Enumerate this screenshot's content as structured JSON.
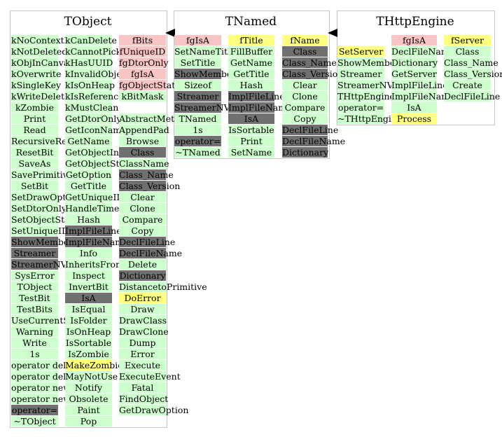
{
  "classes": [
    {
      "name": "TObject",
      "columns": [
        {
          "items": [
            {
              "t": "kNoContextMenu",
              "c": "g"
            },
            {
              "t": "kNotDeleted",
              "c": "g"
            },
            {
              "t": "kObjInCanvas",
              "c": "g"
            },
            {
              "t": "kOverwrite",
              "c": "g"
            },
            {
              "t": "kSingleKey",
              "c": "g"
            },
            {
              "t": "kWriteDelete",
              "c": "g"
            },
            {
              "t": "kZombie",
              "c": "g"
            },
            {
              "t": "Print",
              "c": "g"
            },
            {
              "t": "Read",
              "c": "g"
            },
            {
              "t": "RecursiveRemove",
              "c": "g"
            },
            {
              "t": "ResetBit",
              "c": "g"
            },
            {
              "t": "SaveAs",
              "c": "g"
            },
            {
              "t": "SavePrimitive",
              "c": "g"
            },
            {
              "t": "SetBit",
              "c": "g"
            },
            {
              "t": "SetDrawOption",
              "c": "g"
            },
            {
              "t": "SetDtorOnly",
              "c": "g"
            },
            {
              "t": "SetObjectStat",
              "c": "g"
            },
            {
              "t": "SetUniqueID",
              "c": "g"
            },
            {
              "t": "ShowMembers",
              "c": "d"
            },
            {
              "t": "Streamer",
              "c": "d"
            },
            {
              "t": "StreamerNVirtual",
              "c": "d"
            },
            {
              "t": "SysError",
              "c": "g"
            },
            {
              "t": "TObject",
              "c": "g"
            },
            {
              "t": "TestBit",
              "c": "g"
            },
            {
              "t": "TestBits",
              "c": "g"
            },
            {
              "t": "UseCurrentStyle",
              "c": "g"
            },
            {
              "t": "Warning",
              "c": "g"
            },
            {
              "t": "Write",
              "c": "g"
            },
            {
              "t": "1s",
              "c": "g"
            },
            {
              "t": "operator delete",
              "c": "g"
            },
            {
              "t": "operator delete[]",
              "c": "g"
            },
            {
              "t": "operator new",
              "c": "g"
            },
            {
              "t": "operator new[]",
              "c": "g"
            },
            {
              "t": "operator=",
              "c": "d"
            },
            {
              "t": "~TObject",
              "c": "g"
            }
          ]
        },
        {
          "items": [
            {
              "t": "kCanDelete",
              "c": "g"
            },
            {
              "t": "kCannotPick",
              "c": "g"
            },
            {
              "t": "kHasUUID",
              "c": "g"
            },
            {
              "t": "kInvalidObject",
              "c": "g"
            },
            {
              "t": "kIsOnHeap",
              "c": "g"
            },
            {
              "t": "kIsReferenced",
              "c": "g"
            },
            {
              "t": "kMustCleanup",
              "c": "g"
            },
            {
              "t": "GetDtorOnly",
              "c": "g"
            },
            {
              "t": "GetIconName",
              "c": "g"
            },
            {
              "t": "GetName",
              "c": "g"
            },
            {
              "t": "GetObjectInfo",
              "c": "g"
            },
            {
              "t": "GetObjectStat",
              "c": "g"
            },
            {
              "t": "GetOption",
              "c": "g"
            },
            {
              "t": "GetTitle",
              "c": "g"
            },
            {
              "t": "GetUniqueID",
              "c": "g"
            },
            {
              "t": "HandleTimer",
              "c": "g"
            },
            {
              "t": "Hash",
              "c": "g"
            },
            {
              "t": "ImplFileLine",
              "c": "d"
            },
            {
              "t": "ImplFileName",
              "c": "d"
            },
            {
              "t": "Info",
              "c": "g"
            },
            {
              "t": "InheritsFrom",
              "c": "g"
            },
            {
              "t": "Inspect",
              "c": "g"
            },
            {
              "t": "InvertBit",
              "c": "g"
            },
            {
              "t": "IsA",
              "c": "d"
            },
            {
              "t": "IsEqual",
              "c": "g"
            },
            {
              "t": "IsFolder",
              "c": "g"
            },
            {
              "t": "IsOnHeap",
              "c": "g"
            },
            {
              "t": "IsSortable",
              "c": "g"
            },
            {
              "t": "IsZombie",
              "c": "g"
            },
            {
              "t": "MakeZombie",
              "c": "y"
            },
            {
              "t": "MayNotUse",
              "c": "g"
            },
            {
              "t": "Notify",
              "c": "g"
            },
            {
              "t": "Obsolete",
              "c": "g"
            },
            {
              "t": "Paint",
              "c": "g"
            },
            {
              "t": "Pop",
              "c": "g"
            }
          ]
        },
        {
          "items": [
            {
              "t": "fBits",
              "c": "r"
            },
            {
              "t": "fUniqueID",
              "c": "r"
            },
            {
              "t": "fgDtorOnly",
              "c": "r"
            },
            {
              "t": "fgIsA",
              "c": "r"
            },
            {
              "t": "fgObjectStat",
              "c": "r"
            },
            {
              "t": "kBitMask",
              "c": "g"
            },
            {
              "t": "",
              "c": "w"
            },
            {
              "t": "AbstractMethod",
              "c": "g"
            },
            {
              "t": "AppendPad",
              "c": "g"
            },
            {
              "t": "Browse",
              "c": "g"
            },
            {
              "t": "Class",
              "c": "d"
            },
            {
              "t": "ClassName",
              "c": "g"
            },
            {
              "t": "Class_Name",
              "c": "d"
            },
            {
              "t": "Class_Version",
              "c": "d"
            },
            {
              "t": "Clear",
              "c": "g"
            },
            {
              "t": "Clone",
              "c": "g"
            },
            {
              "t": "Compare",
              "c": "g"
            },
            {
              "t": "Copy",
              "c": "g"
            },
            {
              "t": "DeclFileLine",
              "c": "d"
            },
            {
              "t": "DeclFileName",
              "c": "d"
            },
            {
              "t": "Delete",
              "c": "g"
            },
            {
              "t": "Dictionary",
              "c": "d"
            },
            {
              "t": "DistancetoPrimitive",
              "c": "g"
            },
            {
              "t": "DoError",
              "c": "y"
            },
            {
              "t": "Draw",
              "c": "g"
            },
            {
              "t": "DrawClass",
              "c": "g"
            },
            {
              "t": "DrawClone",
              "c": "g"
            },
            {
              "t": "Dump",
              "c": "g"
            },
            {
              "t": "Error",
              "c": "g"
            },
            {
              "t": "Execute",
              "c": "g"
            },
            {
              "t": "ExecuteEvent",
              "c": "g"
            },
            {
              "t": "Fatal",
              "c": "g"
            },
            {
              "t": "FindObject",
              "c": "g"
            },
            {
              "t": "GetDrawOption",
              "c": "g"
            }
          ]
        }
      ]
    },
    {
      "name": "TNamed",
      "columns": [
        {
          "items": [
            {
              "t": "fgIsA",
              "c": "r"
            },
            {
              "t": "SetNameTitle",
              "c": "g"
            },
            {
              "t": "SetTitle",
              "c": "g"
            },
            {
              "t": "ShowMembers",
              "c": "d"
            },
            {
              "t": "Sizeof",
              "c": "g"
            },
            {
              "t": "Streamer",
              "c": "d"
            },
            {
              "t": "StreamerNVirtual",
              "c": "d"
            },
            {
              "t": "TNamed",
              "c": "g"
            },
            {
              "t": "1s",
              "c": "g"
            },
            {
              "t": "operator=",
              "c": "d"
            },
            {
              "t": "~TNamed",
              "c": "g"
            }
          ]
        },
        {
          "items": [
            {
              "t": "fTitle",
              "c": "y"
            },
            {
              "t": "FillBuffer",
              "c": "g"
            },
            {
              "t": "GetName",
              "c": "g"
            },
            {
              "t": "GetTitle",
              "c": "g"
            },
            {
              "t": "Hash",
              "c": "g"
            },
            {
              "t": "ImplFileLine",
              "c": "d"
            },
            {
              "t": "ImplFileName",
              "c": "d"
            },
            {
              "t": "IsA",
              "c": "d"
            },
            {
              "t": "IsSortable",
              "c": "g"
            },
            {
              "t": "Print",
              "c": "g"
            },
            {
              "t": "SetName",
              "c": "g"
            }
          ]
        },
        {
          "items": [
            {
              "t": "fName",
              "c": "y"
            },
            {
              "t": "Class",
              "c": "d"
            },
            {
              "t": "Class_Name",
              "c": "d"
            },
            {
              "t": "Class_Version",
              "c": "d"
            },
            {
              "t": "Clear",
              "c": "g"
            },
            {
              "t": "Clone",
              "c": "g"
            },
            {
              "t": "Compare",
              "c": "g"
            },
            {
              "t": "Copy",
              "c": "g"
            },
            {
              "t": "DeclFileLine",
              "c": "d"
            },
            {
              "t": "DeclFileName",
              "c": "d"
            },
            {
              "t": "Dictionary",
              "c": "d"
            }
          ]
        }
      ]
    },
    {
      "name": "THttpEngine",
      "columns": [
        {
          "items": [
            {
              "t": "",
              "c": "w"
            },
            {
              "t": "SetServer",
              "c": "y"
            },
            {
              "t": "ShowMembers",
              "c": "g"
            },
            {
              "t": "Streamer",
              "c": "g"
            },
            {
              "t": "StreamerNVirtual",
              "c": "g"
            },
            {
              "t": "THttpEngine",
              "c": "g"
            },
            {
              "t": "operator=",
              "c": "g"
            },
            {
              "t": "~THttpEngine",
              "c": "g"
            }
          ]
        },
        {
          "items": [
            {
              "t": "fgIsA",
              "c": "r"
            },
            {
              "t": "DeclFileName",
              "c": "g"
            },
            {
              "t": "Dictionary",
              "c": "g"
            },
            {
              "t": "GetServer",
              "c": "g"
            },
            {
              "t": "ImplFileLine",
              "c": "g"
            },
            {
              "t": "ImplFileName",
              "c": "g"
            },
            {
              "t": "IsA",
              "c": "g"
            },
            {
              "t": "Process",
              "c": "y"
            }
          ]
        },
        {
          "items": [
            {
              "t": "fServer",
              "c": "y"
            },
            {
              "t": "Class",
              "c": "g"
            },
            {
              "t": "Class_Name",
              "c": "g"
            },
            {
              "t": "Class_Version",
              "c": "g"
            },
            {
              "t": "Create",
              "c": "g"
            },
            {
              "t": "DeclFileLine",
              "c": "g"
            }
          ]
        }
      ]
    }
  ],
  "colors": {
    "method_public": "#ccffcc",
    "member_private": "#f8c4c4",
    "member_protected": "#ffff80",
    "inherited_dark": "#707070",
    "frame_border": "#c8c8c8"
  }
}
